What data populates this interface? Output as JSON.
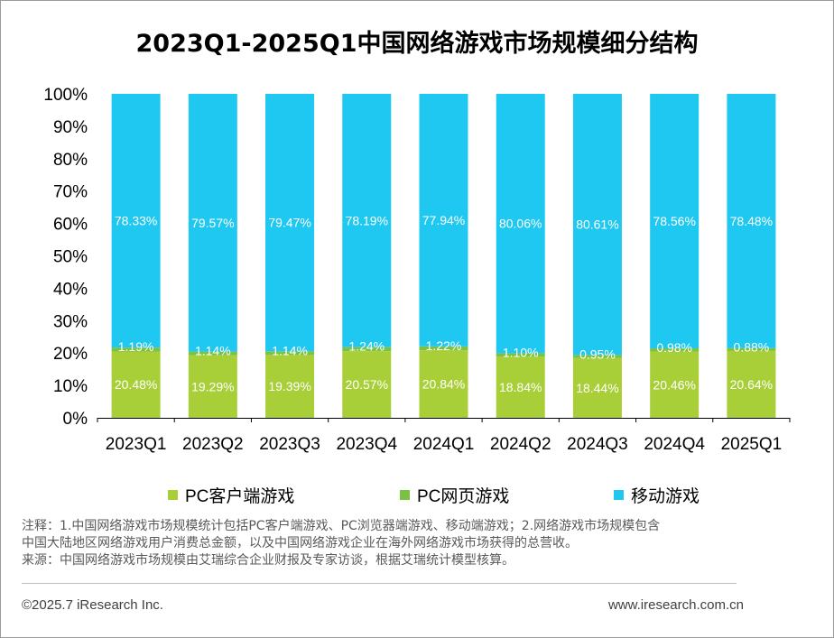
{
  "title": "2023Q1-2025Q1中国网络游戏市场规模细分结构",
  "colors": {
    "pc_client": "#a9cf38",
    "pc_web": "#7cc242",
    "mobile": "#1fc8f0",
    "axis": "#000000"
  },
  "chart_data": {
    "type": "bar",
    "stacked": true,
    "percent": true,
    "title": "2023Q1-2025Q1中国网络游戏市场规模细分结构",
    "categories": [
      "2023Q1",
      "2023Q2",
      "2023Q3",
      "2023Q4",
      "2024Q1",
      "2024Q2",
      "2024Q3",
      "2024Q4",
      "2025Q1"
    ],
    "series": [
      {
        "name": "PC客户端游戏",
        "key": "pc_client",
        "values": [
          20.48,
          19.29,
          19.39,
          20.57,
          20.84,
          18.84,
          18.44,
          20.46,
          20.64
        ],
        "labels": [
          "20.48%",
          "19.29%",
          "19.39%",
          "20.57%",
          "20.84%",
          "18.84%",
          "18.44%",
          "20.46%",
          "20.64%"
        ]
      },
      {
        "name": "PC网页游戏",
        "key": "pc_web",
        "values": [
          1.19,
          1.14,
          1.14,
          1.24,
          1.22,
          1.1,
          0.95,
          0.98,
          0.88
        ],
        "labels": [
          "1.19%",
          "1.14%",
          "1.14%",
          "1.24%",
          "1.22%",
          "1.10%",
          "0.95%",
          "0.98%",
          "0.88%"
        ]
      },
      {
        "name": "移动游戏",
        "key": "mobile",
        "values": [
          78.33,
          79.57,
          79.47,
          78.19,
          77.94,
          80.06,
          80.61,
          78.56,
          78.48
        ],
        "labels": [
          "78.33%",
          "79.57%",
          "79.47%",
          "78.19%",
          "77.94%",
          "80.06%",
          "80.61%",
          "78.56%",
          "78.48%"
        ]
      }
    ],
    "yticks": [
      "0%",
      "10%",
      "20%",
      "30%",
      "40%",
      "50%",
      "60%",
      "70%",
      "80%",
      "90%",
      "100%"
    ],
    "ylim": [
      0,
      100
    ],
    "xlabel": "",
    "ylabel": "",
    "legend": "bottom",
    "grid": false
  },
  "legend": {
    "pc_client": "PC客户端游戏",
    "pc_web": "PC网页游戏",
    "mobile": "移动游戏"
  },
  "note": {
    "line1": "注释：1.中国网络游戏市场规模统计包括PC客户端游戏、PC浏览器端游戏、移动端游戏；2.网络游戏市场规模包含",
    "line2": "中国大陆地区网络游戏用户消费总金额，以及中国网络游戏企业在海外网络游戏市场获得的总营收。",
    "line3": "来源：中国网络游戏市场规模由艾瑞综合企业财报及专家访谈，根据艾瑞统计模型核算。"
  },
  "footer": {
    "copyright": "©2025.7 iResearch Inc.",
    "website": "www.iresearch.com.cn"
  }
}
